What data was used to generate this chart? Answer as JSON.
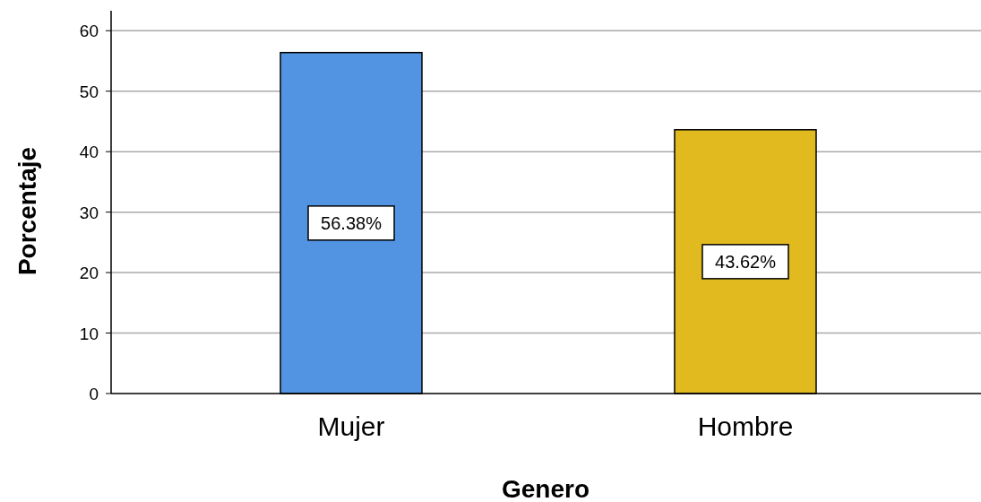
{
  "chart_data": {
    "type": "bar",
    "xlabel": "Genero",
    "ylabel": "Porcentaje",
    "categories": [
      "Mujer",
      "Hombre"
    ],
    "values": [
      56.38,
      43.62
    ],
    "colors": [
      "#5294e2",
      "#e1ba1f"
    ],
    "value_labels": [
      "56.38%",
      "43.62%"
    ],
    "ylim": [
      0,
      63.3
    ],
    "yticks": [
      0,
      10,
      20,
      30,
      40,
      50,
      60
    ],
    "grid": "y"
  }
}
